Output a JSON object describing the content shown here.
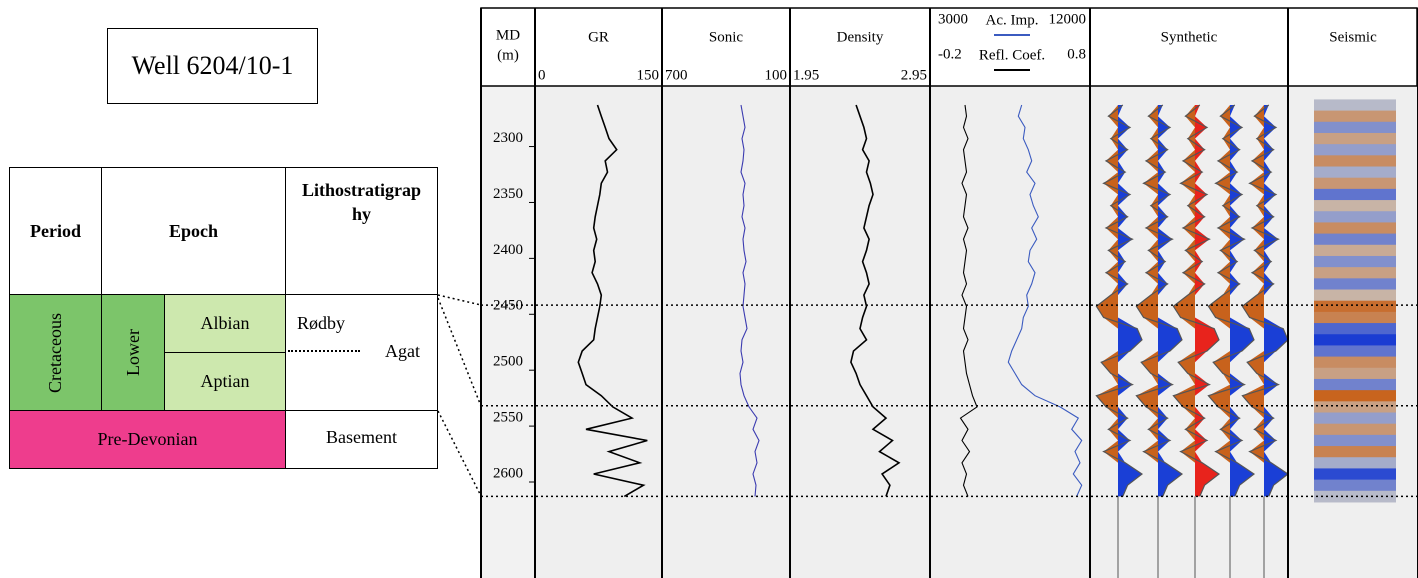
{
  "title": "Well 6204/10-1",
  "table": {
    "headers": [
      "Period",
      "Epoch",
      "Lithostratigraphy"
    ],
    "period": "Cretaceous",
    "epoch": "Lower",
    "stages": [
      "Albian",
      "Aptian"
    ],
    "formations": [
      "Rødby",
      "Agat"
    ],
    "basement_period": "Pre-Devonian",
    "basement": "Basement"
  },
  "chart_data": {
    "type": "well-log",
    "depth_label": "MD",
    "depth_unit": "(m)",
    "ylim": [
      2253,
      2693
    ],
    "yticks": [
      2300,
      2350,
      2400,
      2450,
      2500,
      2550,
      2600
    ],
    "horizons": [
      2449,
      2539,
      2620
    ],
    "depths": [
      2270,
      2280,
      2290,
      2300,
      2310,
      2320,
      2330,
      2340,
      2350,
      2360,
      2370,
      2380,
      2390,
      2400,
      2410,
      2420,
      2430,
      2440,
      2450,
      2460,
      2470,
      2480,
      2490,
      2500,
      2510,
      2520,
      2530,
      2540,
      2550,
      2560,
      2570,
      2580,
      2590,
      2600,
      2610,
      2620
    ],
    "tracks": [
      {
        "name": "GR",
        "xlim": [
          0,
          150
        ],
        "color": "#000000",
        "values": [
          75,
          80,
          85,
          90,
          100,
          85,
          88,
          80,
          78,
          75,
          72,
          70,
          74,
          70,
          72,
          68,
          75,
          80,
          78,
          75,
          72,
          70,
          55,
          50,
          55,
          60,
          80,
          95,
          120,
          60,
          140,
          90,
          130,
          70,
          135,
          110
        ]
      },
      {
        "name": "Sonic",
        "xlim": [
          700,
          100
        ],
        "color": "#3b3bb0",
        "values": [
          330,
          320,
          310,
          325,
          315,
          320,
          330,
          310,
          320,
          315,
          325,
          310,
          320,
          315,
          305,
          320,
          310,
          315,
          320,
          310,
          300,
          325,
          330,
          320,
          335,
          330,
          315,
          290,
          250,
          270,
          240,
          260,
          250,
          270,
          255,
          260
        ]
      },
      {
        "name": "Density",
        "xlim": [
          1.95,
          2.95
        ],
        "color": "#000000",
        "values": [
          2.42,
          2.45,
          2.48,
          2.5,
          2.47,
          2.52,
          2.5,
          2.53,
          2.55,
          2.52,
          2.5,
          2.48,
          2.52,
          2.5,
          2.47,
          2.5,
          2.52,
          2.48,
          2.5,
          2.47,
          2.45,
          2.5,
          2.4,
          2.38,
          2.42,
          2.45,
          2.5,
          2.55,
          2.65,
          2.55,
          2.7,
          2.6,
          2.75,
          2.62,
          2.68,
          2.65
        ]
      },
      {
        "name": "Ac. Imp.",
        "xlim": [
          3000,
          12000
        ],
        "color": "#3b5bc0",
        "values": [
          8200,
          8000,
          8400,
          8300,
          8600,
          8800,
          8500,
          9000,
          8700,
          8900,
          9200,
          8800,
          9100,
          8700,
          8600,
          9000,
          8800,
          8500,
          8600,
          8300,
          8200,
          7900,
          7600,
          7400,
          7800,
          8200,
          9000,
          10500,
          11600,
          11200,
          11800,
          11400,
          11700,
          11300,
          11800,
          11500
        ]
      },
      {
        "name": "Refl. Coef.",
        "xlim": [
          -0.2,
          0.8
        ],
        "color": "#000000",
        "values": [
          0,
          0.01,
          -0.01,
          0.02,
          -0.01,
          0,
          0.01,
          -0.02,
          0.01,
          0,
          -0.01,
          0.02,
          -0.01,
          0.01,
          0,
          -0.01,
          0.01,
          -0.02,
          0.01,
          0,
          -0.01,
          0.02,
          -0.01,
          0,
          0.01,
          0.03,
          0.05,
          0.08,
          -0.03,
          0.02,
          -0.02,
          0.03,
          -0.02,
          0.01,
          -0.01,
          0.02
        ]
      }
    ],
    "synthetic": {
      "name": "Synthetic",
      "values": [
        0.2,
        -0.4,
        0.5,
        -0.3,
        0.4,
        -0.5,
        0.3,
        -0.6,
        0.5,
        -0.3,
        0.4,
        -0.5,
        0.6,
        -0.4,
        0.3,
        -0.5,
        0.4,
        -0.3,
        -0.9,
        -0.6,
        0.8,
        1.0,
        0.5,
        -0.7,
        -0.3,
        0.6,
        -0.9,
        -0.5,
        0.4,
        -0.4,
        0.5,
        -0.6,
        0.3,
        1.0,
        0.4,
        0.2
      ]
    },
    "seismic": {
      "name": "Seismic",
      "values": [
        0.1,
        -0.5,
        0.4,
        -0.4,
        0.3,
        -0.6,
        0.2,
        -0.5,
        0.6,
        -0.2,
        0.3,
        -0.6,
        0.5,
        -0.3,
        0.4,
        -0.4,
        0.5,
        -0.2,
        -0.9,
        -0.7,
        0.7,
        1.0,
        0.6,
        -0.6,
        -0.4,
        0.5,
        -1.0,
        -0.4,
        0.3,
        -0.5,
        0.4,
        -0.7,
        0.2,
        0.9,
        0.5,
        0.1
      ]
    }
  }
}
